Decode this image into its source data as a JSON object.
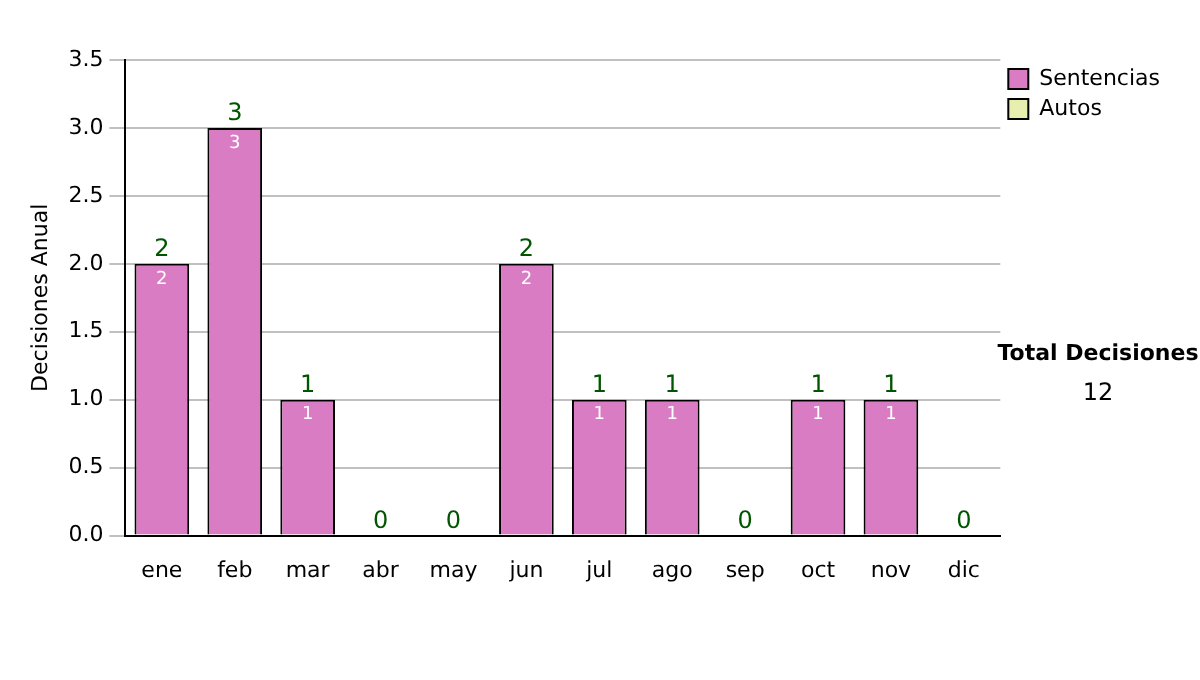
{
  "chart_data": {
    "type": "bar",
    "stacked": true,
    "ylabel": "Decisiones Anual",
    "categories": [
      "ene",
      "feb",
      "mar",
      "abr",
      "may",
      "jun",
      "jul",
      "ago",
      "sep",
      "oct",
      "nov",
      "dic"
    ],
    "series": [
      {
        "name": "Sentencias",
        "color": "#d97cc4",
        "values": [
          2,
          3,
          1,
          0,
          0,
          2,
          1,
          1,
          0,
          1,
          1,
          0
        ],
        "value_labels": [
          "2",
          "3",
          "1",
          null,
          null,
          "2",
          "1",
          "1",
          null,
          "1",
          "1",
          null
        ]
      },
      {
        "name": "Autos",
        "color": "#e8eeb0",
        "values": [
          0,
          0,
          0,
          0,
          0,
          0,
          0,
          0,
          0,
          0,
          0,
          0
        ]
      }
    ],
    "totals": [
      "2",
      "3",
      "1",
      "0",
      "0",
      "2",
      "1",
      "1",
      "0",
      "1",
      "1",
      "0"
    ],
    "ylim": [
      0,
      3.5
    ],
    "yticks": [
      {
        "value": 0,
        "label": "0.0"
      },
      {
        "value": 0.5,
        "label": "0.5"
      },
      {
        "value": 1,
        "label": "1.0"
      },
      {
        "value": 1.5,
        "label": "1.5"
      },
      {
        "value": 2,
        "label": "2.0"
      },
      {
        "value": 2.5,
        "label": "2.5"
      },
      {
        "value": 3,
        "label": "3.0"
      },
      {
        "value": 3.5,
        "label": "3.5"
      }
    ],
    "grid": "y",
    "legend": "right",
    "annotations": [
      "Total Decisiones",
      "12"
    ]
  }
}
